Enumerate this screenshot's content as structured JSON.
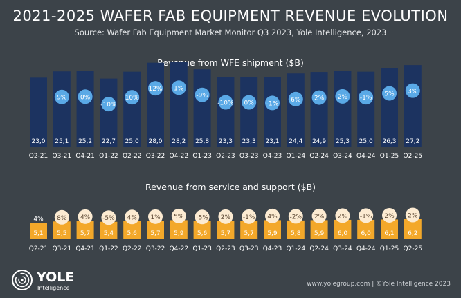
{
  "header": {
    "title": "2021-2025 WAFER FAB EQUIPMENT REVENUE EVOLUTION",
    "source": "Source: Wafer Fab Equipment Market Monitor Q3 2023, Yole Intelligence, 2023"
  },
  "brand": {
    "logo_text": "YOLE",
    "logo_subtext": "Intelligence"
  },
  "footer": {
    "text": "www.yolegroup.com | ©Yole Intelligence 2023"
  },
  "colors": {
    "background": "#3c4349",
    "wfe_bar": "#1c3360",
    "wfe_bubble": "#5aa9e6",
    "service_bar": "#f3a82a",
    "service_bubble": "#fcebd2",
    "service_bubble_text": "#5a4632",
    "text": "#ffffff"
  },
  "chart_data": [
    {
      "type": "bar",
      "title": "Revenue from WFE shipment ($B)",
      "categories": [
        "Q2-21",
        "Q3-21",
        "Q4-21",
        "Q1-22",
        "Q2-22",
        "Q3-22",
        "Q4-22",
        "Q1-23",
        "Q2-23",
        "Q3-23",
        "Q4-23",
        "Q1-24",
        "Q2-24",
        "Q3-24",
        "Q4-24",
        "Q1-25",
        "Q2-25"
      ],
      "values": [
        23.0,
        25.1,
        25.2,
        22.7,
        25.0,
        28.0,
        28.2,
        25.8,
        23.3,
        23.3,
        23.1,
        24.4,
        24.9,
        25.3,
        25.0,
        26.3,
        27.2
      ],
      "value_labels": [
        "23,0",
        "25,1",
        "25,2",
        "22,7",
        "25,0",
        "28,0",
        "28,2",
        "25,8",
        "23,3",
        "23,3",
        "23,1",
        "24,4",
        "24,9",
        "25,3",
        "25,0",
        "26,3",
        "27,2"
      ],
      "growth_labels": [
        "",
        "9%",
        "0%",
        "-10%",
        "10%",
        "12%",
        "1%",
        "-9%",
        "-10%",
        "0%",
        "-1%",
        "6%",
        "2%",
        "2%",
        "-1%",
        "5%",
        "3%"
      ]
    },
    {
      "type": "bar",
      "title": "Revenue from service and support ($B)",
      "categories": [
        "Q2-21",
        "Q3-21",
        "Q4-21",
        "Q1-22",
        "Q2-22",
        "Q3-22",
        "Q4-22",
        "Q1-23",
        "Q2-23",
        "Q3-23",
        "Q4-23",
        "Q1-24",
        "Q2-24",
        "Q3-24",
        "Q4-24",
        "Q1-25",
        "Q2-25"
      ],
      "values": [
        5.1,
        5.5,
        5.7,
        5.4,
        5.6,
        5.7,
        5.9,
        5.6,
        5.7,
        5.7,
        5.9,
        5.8,
        5.9,
        6.0,
        6.0,
        6.1,
        6.2
      ],
      "value_labels": [
        "5,1",
        "5,5",
        "5,7",
        "5,4",
        "5,6",
        "5,7",
        "5,9",
        "5,6",
        "5,7",
        "5,7",
        "5,9",
        "5,8",
        "5,9",
        "6,0",
        "6,0",
        "6,1",
        "6,2"
      ],
      "growth_labels": [
        "4%",
        "8%",
        "4%",
        "-5%",
        "4%",
        "1%",
        "5%",
        "-5%",
        "2%",
        "-1%",
        "4%",
        "-2%",
        "2%",
        "2%",
        "-1%",
        "2%",
        "2%"
      ]
    }
  ]
}
